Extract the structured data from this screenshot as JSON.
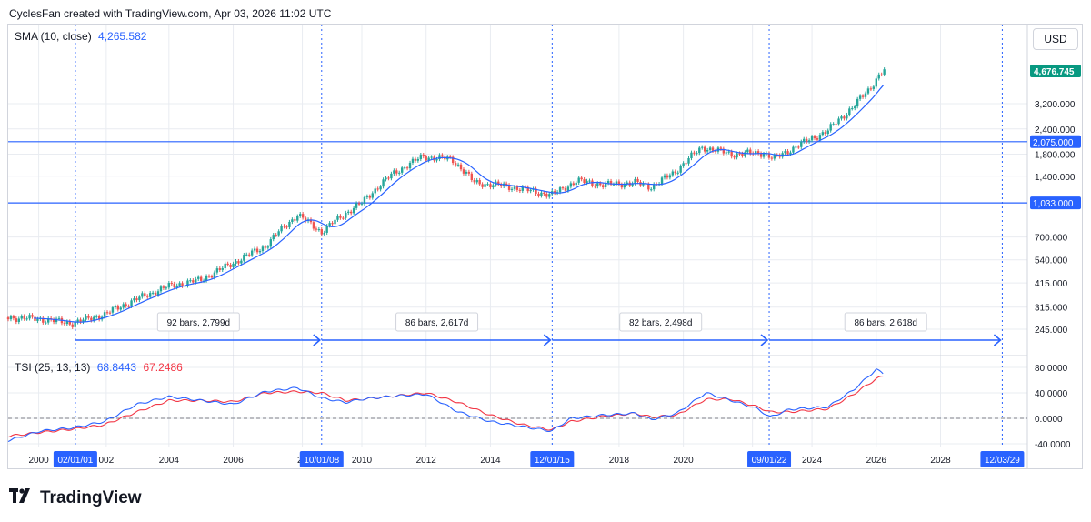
{
  "header": {
    "text": "CyclesFan created with TradingView.com, Apr 03, 2026 11:02 UTC"
  },
  "currency_button": "USD",
  "brand": {
    "name": "TradingView"
  },
  "colors": {
    "up": "#26a69a",
    "down": "#ef5350",
    "sma": "#2962ff",
    "tsi": "#2962ff",
    "signal": "#f23645",
    "hline": "#2962ff",
    "last_price_bg": "#089981",
    "grid": "#e9ecf1"
  },
  "chart_data": {
    "type": "candlestick",
    "instrument_panel": {
      "legend": {
        "label": "SMA (10, close)",
        "value": "4,265.582"
      },
      "y_scale": "log",
      "y_ticks": [
        {
          "value": 245,
          "label": "245.000"
        },
        {
          "value": 315,
          "label": "315.000"
        },
        {
          "value": 415,
          "label": "415.000"
        },
        {
          "value": 540,
          "label": "540.000"
        },
        {
          "value": 700,
          "label": "700.000"
        },
        {
          "value": 1400,
          "label": "1,400.000"
        },
        {
          "value": 1800,
          "label": "1,800.000"
        },
        {
          "value": 2400,
          "label": "2,400.000"
        },
        {
          "value": 3200,
          "label": "3,200.000"
        }
      ],
      "horizontal_lines": [
        {
          "value": 2075,
          "label": "2,075.000"
        },
        {
          "value": 1033,
          "label": "1,033.000"
        }
      ],
      "last_price": {
        "value": 4676.745,
        "label": "4,676.745"
      },
      "series_path": [
        [
          1999.0,
          280
        ],
        [
          2000.0,
          275
        ],
        [
          2001.0,
          262
        ],
        [
          2002.0,
          290
        ],
        [
          2003.0,
          345
        ],
        [
          2004.0,
          400
        ],
        [
          2005.0,
          430
        ],
        [
          2006.0,
          520
        ],
        [
          2007.0,
          630
        ],
        [
          2008.0,
          900
        ],
        [
          2008.75,
          740
        ],
        [
          2009.5,
          920
        ],
        [
          2010.0,
          1030
        ],
        [
          2011.0,
          1450
        ],
        [
          2011.9,
          1750
        ],
        [
          2012.8,
          1700
        ],
        [
          2013.5,
          1300
        ],
        [
          2014.5,
          1250
        ],
        [
          2015.9,
          1130
        ],
        [
          2016.7,
          1330
        ],
        [
          2017.5,
          1270
        ],
        [
          2018.5,
          1300
        ],
        [
          2019.0,
          1240
        ],
        [
          2019.7,
          1450
        ],
        [
          2020.6,
          1950
        ],
        [
          2021.5,
          1800
        ],
        [
          2022.5,
          1830
        ],
        [
          2022.8,
          1700
        ],
        [
          2023.5,
          1960
        ],
        [
          2024.5,
          2350
        ],
        [
          2025.3,
          3100
        ],
        [
          2025.8,
          3800
        ],
        [
          2026.1,
          4450
        ],
        [
          2026.25,
          4676.745
        ]
      ],
      "sma_value": 4265.582
    },
    "cycles": [
      {
        "start_label": "02/01/01",
        "bars_label": "92 bars, 2,799d",
        "start_year": 2001.09
      },
      {
        "start_label": "10/01/08",
        "bars_label": "86 bars, 2,617d",
        "start_year": 2008.75
      },
      {
        "start_label": "12/01/15",
        "bars_label": "82 bars, 2,498d",
        "start_year": 2015.92
      },
      {
        "start_label": "09/01/22",
        "bars_label": "86 bars, 2,618d",
        "start_year": 2022.67
      },
      {
        "start_label": "12/03/29",
        "bars_label": "",
        "start_year": 2029.92
      }
    ],
    "tsi_panel": {
      "legend": {
        "label": "TSI (25, 13, 13)",
        "tsi_value": "68.8443",
        "signal_value": "67.2486"
      },
      "y_ticks": [
        {
          "value": 80,
          "label": "80.0000"
        },
        {
          "value": 40,
          "label": "40.0000"
        },
        {
          "value": 0,
          "label": "0.0000"
        },
        {
          "value": -40,
          "label": "-40.0000"
        }
      ],
      "tsi": [
        [
          1999.0,
          -35
        ],
        [
          2000.0,
          -20
        ],
        [
          2001.0,
          -15
        ],
        [
          2002.0,
          -5
        ],
        [
          2003.0,
          22
        ],
        [
          2004.0,
          34
        ],
        [
          2005.0,
          28
        ],
        [
          2006.0,
          22
        ],
        [
          2007.0,
          42
        ],
        [
          2008.0,
          48
        ],
        [
          2008.75,
          32
        ],
        [
          2009.5,
          25
        ],
        [
          2010.0,
          30
        ],
        [
          2011.0,
          35
        ],
        [
          2012.0,
          38
        ],
        [
          2013.0,
          10
        ],
        [
          2014.0,
          -5
        ],
        [
          2015.0,
          -13
        ],
        [
          2015.9,
          -20
        ],
        [
          2016.5,
          0
        ],
        [
          2017.5,
          5
        ],
        [
          2018.5,
          8
        ],
        [
          2019.0,
          -2
        ],
        [
          2019.8,
          8
        ],
        [
          2020.7,
          40
        ],
        [
          2021.5,
          28
        ],
        [
          2022.3,
          15
        ],
        [
          2022.7,
          2
        ],
        [
          2023.3,
          14
        ],
        [
          2024.5,
          18
        ],
        [
          2025.3,
          45
        ],
        [
          2026.0,
          77
        ],
        [
          2026.25,
          68.8443
        ]
      ],
      "signal": [
        [
          1999.0,
          -28
        ],
        [
          2000.0,
          -22
        ],
        [
          2001.0,
          -17
        ],
        [
          2002.0,
          -10
        ],
        [
          2003.0,
          10
        ],
        [
          2004.0,
          28
        ],
        [
          2005.0,
          28
        ],
        [
          2006.0,
          26
        ],
        [
          2007.0,
          40
        ],
        [
          2008.0,
          42
        ],
        [
          2008.75,
          40
        ],
        [
          2009.5,
          28
        ],
        [
          2010.0,
          30
        ],
        [
          2011.0,
          35
        ],
        [
          2012.0,
          40
        ],
        [
          2013.0,
          25
        ],
        [
          2014.0,
          5
        ],
        [
          2015.0,
          -10
        ],
        [
          2015.9,
          -18
        ],
        [
          2016.5,
          -5
        ],
        [
          2017.5,
          3
        ],
        [
          2018.5,
          8
        ],
        [
          2019.0,
          2
        ],
        [
          2019.8,
          5
        ],
        [
          2020.7,
          30
        ],
        [
          2021.5,
          30
        ],
        [
          2022.3,
          18
        ],
        [
          2022.7,
          10
        ],
        [
          2023.3,
          10
        ],
        [
          2024.5,
          15
        ],
        [
          2025.3,
          38
        ],
        [
          2026.0,
          62
        ],
        [
          2026.25,
          67.2486
        ]
      ]
    },
    "x_axis": {
      "ticks": [
        {
          "year": 1999.95,
          "label": "2000"
        },
        {
          "year": 2002.05,
          "label": "002"
        },
        {
          "year": 2004.0,
          "label": "2004"
        },
        {
          "year": 2006.0,
          "label": "2006"
        },
        {
          "year": 2008.15,
          "label": "20"
        },
        {
          "year": 2010.0,
          "label": "2010"
        },
        {
          "year": 2012.0,
          "label": "2012"
        },
        {
          "year": 2014.0,
          "label": "2014"
        },
        {
          "year": 2018.0,
          "label": "2018"
        },
        {
          "year": 2020.0,
          "label": "2020"
        },
        {
          "year": 2022.15,
          "label": "20"
        },
        {
          "year": 2024.0,
          "label": "2024"
        },
        {
          "year": 2026.0,
          "label": "2026"
        },
        {
          "year": 2028.0,
          "label": "2028"
        }
      ]
    }
  }
}
